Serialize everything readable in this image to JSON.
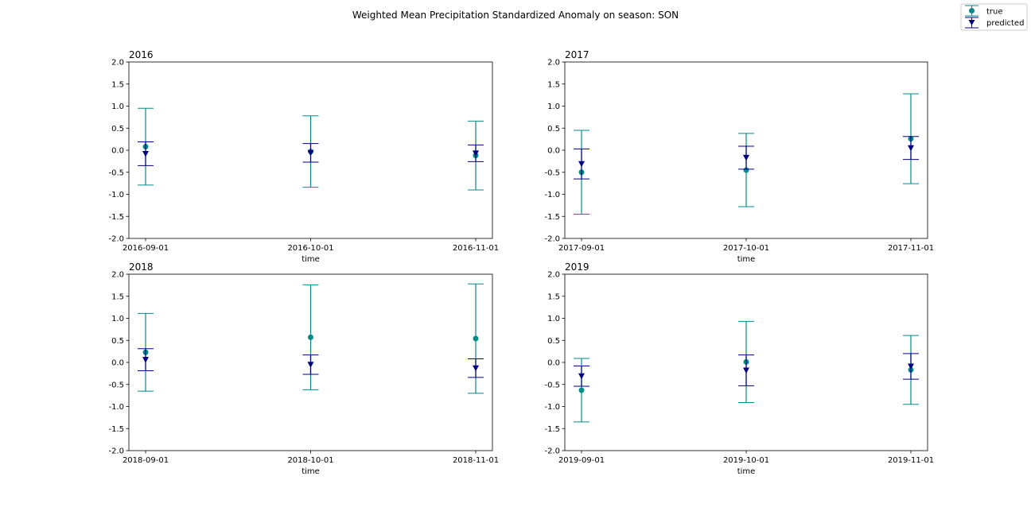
{
  "figure": {
    "title": "Weighted Mean Precipitation Standardized Anomaly on season: SON"
  },
  "legend": {
    "placement": "top-right",
    "entries": [
      {
        "label": "true",
        "color": "#008b8b",
        "marker": "circle"
      },
      {
        "label": "predicted",
        "color": "#000080",
        "marker": "triangle-down"
      }
    ]
  },
  "chart_data": [
    {
      "type": "scatter",
      "title": "2016",
      "xlabel": "time",
      "categories": [
        "2016-09-01",
        "2016-10-01",
        "2016-11-01"
      ],
      "ylim": [
        -2.0,
        2.0
      ],
      "yticks": [
        "2.0",
        "1.5",
        "1.0",
        "0.5",
        "0.0",
        "-0.5",
        "-1.0",
        "-1.5",
        "-2.0"
      ],
      "series": [
        {
          "name": "true",
          "color": "#008b8b",
          "values": [
            0.08,
            -0.03,
            -0.12
          ],
          "errors": [
            0.87,
            0.81,
            0.78
          ]
        },
        {
          "name": "predicted",
          "color": "#000080",
          "values": [
            -0.08,
            -0.06,
            -0.07
          ],
          "errors": [
            0.27,
            0.21,
            0.19
          ]
        }
      ]
    },
    {
      "type": "scatter",
      "title": "2017",
      "xlabel": "time",
      "categories": [
        "2017-09-01",
        "2017-10-01",
        "2017-11-01"
      ],
      "ylim": [
        -2.0,
        2.0
      ],
      "yticks": [
        "2.0",
        "1.5",
        "1.0",
        "0.5",
        "0.0",
        "-0.5",
        "-1.0",
        "-1.5",
        "-2.0"
      ],
      "series": [
        {
          "name": "true",
          "color": "#008b8b",
          "values": [
            -0.5,
            -0.45,
            0.26
          ],
          "errors": [
            0.95,
            0.83,
            1.02
          ]
        },
        {
          "name": "predicted",
          "color": "#000080",
          "values": [
            -0.31,
            -0.17,
            0.05
          ],
          "errors": [
            0.34,
            0.26,
            0.26
          ]
        }
      ]
    },
    {
      "type": "scatter",
      "title": "2018",
      "xlabel": "time",
      "categories": [
        "2018-09-01",
        "2018-10-01",
        "2018-11-01"
      ],
      "ylim": [
        -2.0,
        2.0
      ],
      "yticks": [
        "2.0",
        "1.5",
        "1.0",
        "0.5",
        "0.0",
        "-0.5",
        "-1.0",
        "-1.5",
        "-2.0"
      ],
      "series": [
        {
          "name": "true",
          "color": "#008b8b",
          "values": [
            0.23,
            0.57,
            0.54
          ],
          "errors": [
            0.88,
            1.19,
            1.24
          ]
        },
        {
          "name": "predicted",
          "color": "#000080",
          "values": [
            0.06,
            -0.05,
            -0.13
          ],
          "errors": [
            0.25,
            0.22,
            0.21
          ]
        }
      ]
    },
    {
      "type": "scatter",
      "title": "2019",
      "xlabel": "time",
      "categories": [
        "2019-09-01",
        "2019-10-01",
        "2019-11-01"
      ],
      "ylim": [
        -2.0,
        2.0
      ],
      "yticks": [
        "2.0",
        "1.5",
        "1.0",
        "0.5",
        "0.0",
        "-0.5",
        "-1.0",
        "-1.5",
        "-2.0"
      ],
      "series": [
        {
          "name": "true",
          "color": "#008b8b",
          "values": [
            -0.63,
            0.01,
            -0.17
          ],
          "errors": [
            0.72,
            0.92,
            0.78
          ]
        },
        {
          "name": "predicted",
          "color": "#000080",
          "values": [
            -0.31,
            -0.18,
            -0.09
          ],
          "errors": [
            0.23,
            0.35,
            0.29
          ]
        }
      ]
    }
  ]
}
